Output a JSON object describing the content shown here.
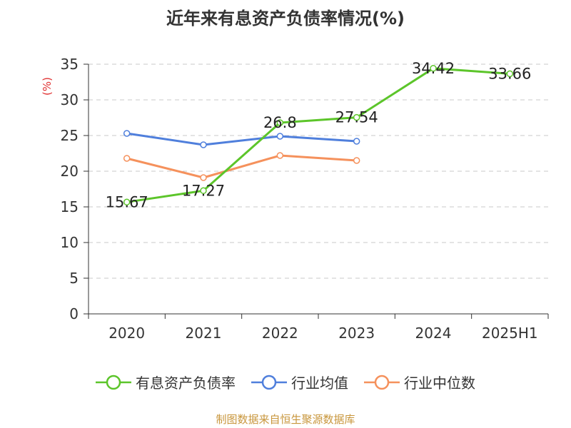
{
  "title": "近年来有息资产负债率情况(%)",
  "footer": "制图数据来自恒生聚源数据库",
  "chart_data": {
    "type": "line",
    "categories": [
      "2020",
      "2021",
      "2022",
      "2023",
      "2024",
      "2025H1"
    ],
    "ylabel": "(%)",
    "ylim": [
      0,
      35
    ],
    "yticks": [
      0,
      5,
      10,
      15,
      20,
      25,
      30,
      35
    ],
    "grid": true,
    "legend_position": "bottom",
    "series": [
      {
        "name": "有息资产负债率",
        "color": "#5cc52a",
        "values": [
          15.67,
          17.27,
          26.8,
          27.54,
          34.42,
          33.66
        ],
        "labels": [
          "15.67",
          "17.27",
          "26.8",
          "27.54",
          "34.42",
          "33.66"
        ]
      },
      {
        "name": "行业均值",
        "color": "#4f7fdc",
        "values": [
          25.3,
          23.7,
          24.9,
          24.2,
          null,
          null
        ]
      },
      {
        "name": "行业中位数",
        "color": "#f5915c",
        "values": [
          21.8,
          19.1,
          22.2,
          21.5,
          null,
          null
        ]
      }
    ]
  }
}
